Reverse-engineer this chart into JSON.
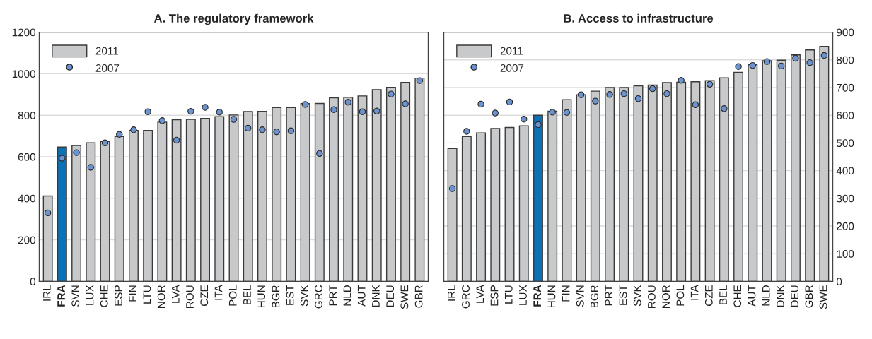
{
  "chart_data": [
    {
      "type": "bar",
      "title": "A. The regulatory framework",
      "categories": [
        "IRL",
        "FRA",
        "SVN",
        "LUX",
        "CHE",
        "ESP",
        "FIN",
        "LTU",
        "NOR",
        "LVA",
        "ROU",
        "CZE",
        "ITA",
        "POL",
        "BEL",
        "HUN",
        "BGR",
        "EST",
        "SVK",
        "GRC",
        "PRT",
        "NLD",
        "AUT",
        "DNK",
        "DEU",
        "SWE",
        "GBR"
      ],
      "series": [
        {
          "name": "2011",
          "color": "#c8c9cb",
          "colors": [
            "#c8c9cb",
            "#0a72b8",
            "#c8c9cb",
            "#c8c9cb",
            "#c8c9cb",
            "#c8c9cb",
            "#c8c9cb",
            "#c8c9cb",
            "#c8c9cb",
            "#c8c9cb",
            "#c8c9cb",
            "#c8c9cb",
            "#c8c9cb",
            "#c8c9cb",
            "#c8c9cb",
            "#c8c9cb",
            "#c8c9cb",
            "#c8c9cb",
            "#c8c9cb",
            "#c8c9cb",
            "#c8c9cb",
            "#c8c9cb",
            "#c8c9cb",
            "#c8c9cb",
            "#c8c9cb",
            "#c8c9cb",
            "#c8c9cb"
          ],
          "values": [
            411,
            647,
            654,
            667,
            674,
            698,
            727,
            727,
            767,
            778,
            780,
            785,
            793,
            801,
            818,
            819,
            837,
            837,
            856,
            857,
            884,
            886,
            893,
            923,
            934,
            958,
            979
          ]
        },
        {
          "name": "2007",
          "type": "scatter",
          "marker": "circle",
          "color": "#6a93d0",
          "values": [
            330,
            593,
            620,
            549,
            667,
            708,
            730,
            817,
            774,
            680,
            819,
            838,
            815,
            780,
            738,
            730,
            720,
            725,
            852,
            616,
            827,
            863,
            817,
            820,
            902,
            855,
            967
          ]
        }
      ],
      "ylim": [
        0,
        1200
      ],
      "yticks": [
        0,
        200,
        400,
        600,
        800,
        1000,
        1200
      ],
      "grid": "y",
      "legend": "top left"
    },
    {
      "type": "bar",
      "title": "B. Access to infrastructure",
      "categories": [
        "IRL",
        "GRC",
        "LVA",
        "ESP",
        "LTU",
        "LUX",
        "FRA",
        "HUN",
        "FIN",
        "SVN",
        "BGR",
        "PRT",
        "EST",
        "SVK",
        "ROU",
        "NOR",
        "POL",
        "ITA",
        "CZE",
        "BEL",
        "CHE",
        "AUT",
        "NLD",
        "DNK",
        "DEU",
        "GBR",
        "SWE"
      ],
      "series": [
        {
          "name": "2011",
          "axis": "y2",
          "color": "#c8c9cb",
          "colors": [
            "#c8c9cb",
            "#c8c9cb",
            "#c8c9cb",
            "#c8c9cb",
            "#c8c9cb",
            "#c8c9cb",
            "#0a72b8",
            "#c8c9cb",
            "#c8c9cb",
            "#c8c9cb",
            "#c8c9cb",
            "#c8c9cb",
            "#c8c9cb",
            "#c8c9cb",
            "#c8c9cb",
            "#c8c9cb",
            "#c8c9cb",
            "#c8c9cb",
            "#c8c9cb",
            "#c8c9cb",
            "#c8c9cb",
            "#c8c9cb",
            "#c8c9cb",
            "#c8c9cb",
            "#c8c9cb",
            "#c8c9cb",
            "#c8c9cb"
          ],
          "values": [
            480,
            523,
            536,
            552,
            556,
            562,
            600,
            615,
            656,
            674,
            687,
            700,
            700,
            706,
            709,
            718,
            719,
            721,
            725,
            735,
            755,
            783,
            797,
            799,
            818,
            836,
            849
          ]
        },
        {
          "name": "2007",
          "type": "scatter",
          "axis": "y2",
          "marker": "circle",
          "color": "#6a93d0",
          "values": [
            335,
            542,
            640,
            608,
            648,
            586,
            566,
            611,
            610,
            674,
            651,
            675,
            678,
            660,
            696,
            678,
            726,
            638,
            712,
            624,
            776,
            780,
            794,
            778,
            806,
            790,
            816
          ]
        }
      ],
      "y2lim": [
        0,
        900
      ],
      "y2ticks": [
        0,
        100,
        200,
        300,
        400,
        500,
        600,
        700,
        800,
        900
      ],
      "grid": "y",
      "legend": "top left"
    }
  ]
}
